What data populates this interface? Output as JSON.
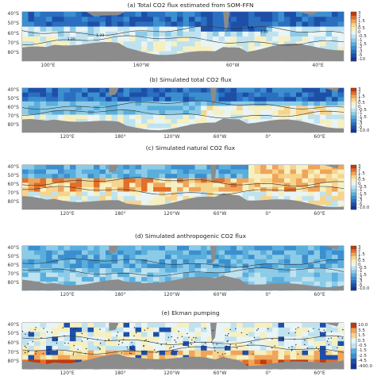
{
  "panels": [
    {
      "title": "(a) Total CO2 flux estimated from SOM-FFN",
      "lat_labels": [
        "40°S",
        "50°S",
        "60°S",
        "70°S",
        "80°S"
      ],
      "lon_labels": [
        "100°E",
        "160°W",
        "60°W",
        "40°E"
      ],
      "contour_labels": [
        "1.20",
        "1.20",
        "4.0",
        "1.20"
      ],
      "colorbar_labels": [
        "3",
        "2",
        "1.5",
        "1",
        "0.5",
        "0",
        "-0.5",
        "-1",
        "-1.5",
        "-2",
        "-3",
        "-5",
        "-10"
      ],
      "field": "diverging"
    },
    {
      "title": "(b) Simulated total CO2 flux",
      "lat_labels": [
        "40°S",
        "50°S",
        "60°S",
        "70°S",
        "80°S"
      ],
      "lon_labels": [
        "120°E",
        "180°",
        "120°W",
        "60°W",
        "0°",
        "60°E"
      ],
      "colorbar_labels": [
        "3",
        "2",
        "1.5",
        "1",
        "0.5",
        "0",
        "-0.5",
        "-1",
        "-1.5",
        "-2",
        "-3",
        "-5",
        "-10.0"
      ],
      "field": "mostly-negative"
    },
    {
      "title": "(c) Simulated natural CO2 flux",
      "lat_labels": [
        "40°S",
        "50°S",
        "60°S",
        "70°S",
        "80°S"
      ],
      "lon_labels": [
        "120°E",
        "180°",
        "120°W",
        "60°W",
        "0°",
        "60°E"
      ],
      "colorbar_labels": [
        "3",
        "2",
        "1.5",
        "1",
        "0.5",
        "0",
        "-0.5",
        "-1",
        "-1.5",
        "-2",
        "-3",
        "-5",
        "-10.0"
      ],
      "field": "mixed"
    },
    {
      "title": "(d) Simulated anthropogenic CO2 flux",
      "lat_labels": [
        "40°S",
        "50°S",
        "60°S",
        "70°S",
        "80°S"
      ],
      "lon_labels": [
        "120°E",
        "180°",
        "120°W",
        "60°W",
        "0°",
        "60°E"
      ],
      "colorbar_labels": [
        "3",
        "2",
        "1.5",
        "1",
        "0.5",
        "0",
        "-0.5",
        "-1",
        "-1.5",
        "-2",
        "-3",
        "-5",
        "-10.0"
      ],
      "field": "negative"
    },
    {
      "title": "(e) Ekman pumping",
      "lat_labels": [
        "40°S",
        "50°S",
        "60°S",
        "70°S",
        "80°S"
      ],
      "lon_labels": [
        "120°E",
        "180°",
        "120°W",
        "60°W",
        "0°",
        "60°E"
      ],
      "colorbar_labels": [
        "10.0",
        "3.5",
        "1.5",
        "0.5",
        "-0.5",
        "-1.5",
        "-2.5",
        "-4.5",
        "-400.0"
      ],
      "field": "ekman"
    }
  ],
  "colors": {
    "land": "#8c8c8c",
    "contour": "#333333",
    "ramp": [
      "#c0390f",
      "#e0702a",
      "#f0a45a",
      "#f6d48c",
      "#f6f0c0",
      "#e8f4f6",
      "#bfe2ef",
      "#8ccbe8",
      "#5aaedc",
      "#3b8fcf",
      "#2a6fc0",
      "#1e4fa8",
      "#163596"
    ]
  }
}
